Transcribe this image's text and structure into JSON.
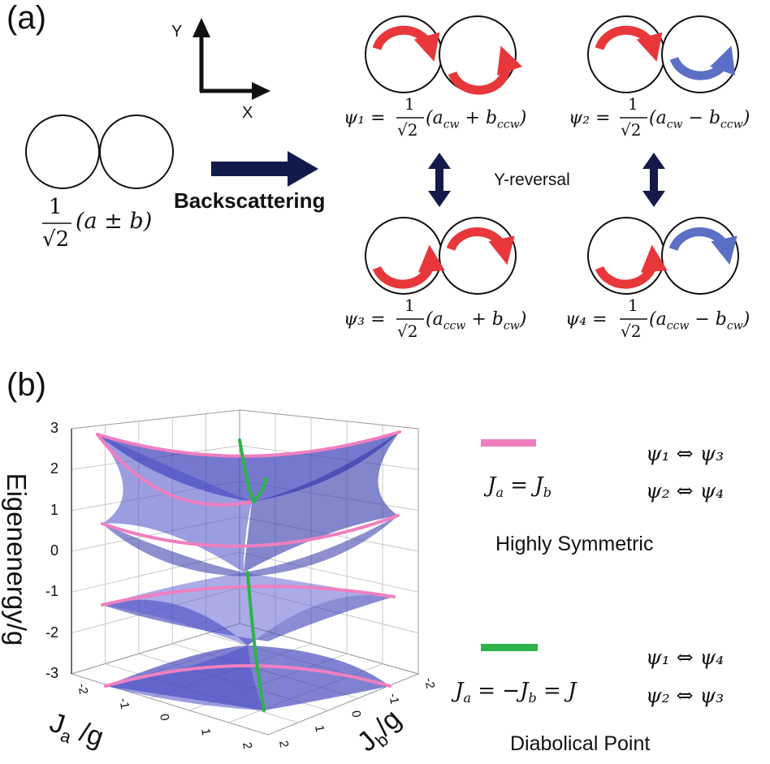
{
  "panel_a": {
    "label": "(a)",
    "axis_y": "Y",
    "axis_x": "X",
    "input_frac_num": "1",
    "input_frac_den": "√2",
    "input_expr": "(a ± b)",
    "arrow_label": "Backscattering",
    "reversal_label": "Y-reversal",
    "states": [
      {
        "psi": "ψ₁ =",
        "num": "1",
        "den": "√2",
        "expr": "(a_cw + b_ccw)",
        "expr_main": "(a",
        "sub1": "cw",
        "op": " + b",
        "sub2": "ccw",
        "close": ")"
      },
      {
        "psi": "ψ₂ =",
        "num": "1",
        "den": "√2",
        "expr": "(a_cw − b_ccw)",
        "expr_main": "(a",
        "sub1": "cw",
        "op": " − b",
        "sub2": "ccw",
        "close": ")"
      },
      {
        "psi": "ψ₃ =",
        "num": "1",
        "den": "√2",
        "expr": "(a_ccw + b_cw)",
        "expr_main": "(a",
        "sub1": "ccw",
        "op": " + b",
        "sub2": "cw",
        "close": ")"
      },
      {
        "psi": "ψ₄ =",
        "num": "1",
        "den": "√2",
        "expr": "(a_ccw − b_cw)",
        "expr_main": "(a",
        "sub1": "ccw",
        "op": " − b",
        "sub2": "cw",
        "close": ")"
      }
    ],
    "colors": {
      "red": "#e8373a",
      "blue": "#5b6fc4",
      "navy": "#121a4a"
    }
  },
  "panel_b": {
    "label": "(b)",
    "z_axis_label": "Eigenenergy/g",
    "x_axis_label": "J_a /g",
    "y_axis_label": "J_b /g",
    "x_axis_main": "J",
    "x_axis_sub": "a",
    "x_axis_rest": " /g",
    "y_axis_main": "J",
    "y_axis_sub": "b",
    "y_axis_rest": "/g",
    "z_ticks": [
      "3",
      "2",
      "1",
      "0",
      "-1",
      "-2",
      "-3"
    ],
    "xy_ticks": [
      "-2",
      "-1",
      "0",
      "1",
      "2"
    ],
    "legend": [
      {
        "color": "#f07fc0",
        "condition": "J_a = J_b",
        "cond_parts": [
          "J",
          "a",
          " = J",
          "b",
          ""
        ],
        "rel1": "ψ₁ ⇔ ψ₃",
        "rel2": "ψ₂ ⇔ ψ₄",
        "caption": "Highly Symmetric"
      },
      {
        "color": "#2db34a",
        "condition": "J_a = −J_b = J",
        "cond_parts": [
          "J",
          "a",
          " = −J",
          "b",
          " = J"
        ],
        "rel1": "ψ₁ ⇔ ψ₄",
        "rel2": "ψ₂ ⇔ ψ₃",
        "caption": "Diabolical Point"
      }
    ],
    "colors": {
      "surface": "#3c3fb8",
      "pink": "#f07fc0",
      "green": "#2db34a"
    }
  }
}
